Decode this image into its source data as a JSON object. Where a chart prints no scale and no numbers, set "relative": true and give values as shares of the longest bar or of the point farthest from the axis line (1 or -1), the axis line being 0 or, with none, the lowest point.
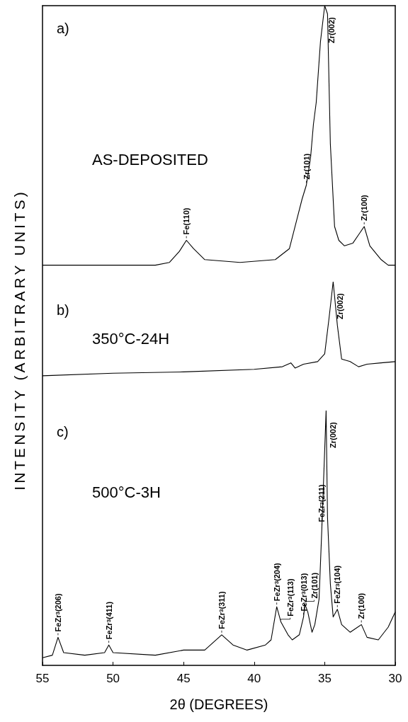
{
  "chart_data": [
    {
      "type": "line",
      "title": "a)",
      "subtitle": "AS-DEPOSITED",
      "relative": true,
      "xlim": [
        55,
        30
      ],
      "tick_labels": false,
      "x": [
        55,
        50,
        47,
        46,
        45.3,
        44.8,
        44.3,
        43.5,
        41,
        38.5,
        37.5,
        37,
        36.6,
        36.3,
        36,
        35.8,
        35.6,
        35.3,
        35,
        34.8,
        34.6,
        34.3,
        34,
        33.6,
        33,
        32.2,
        31.8,
        31,
        30.5,
        30
      ],
      "series": [
        {
          "color": "#000000",
          "values": [
            0.06,
            0.06,
            0.06,
            0.07,
            0.11,
            0.15,
            0.12,
            0.08,
            0.07,
            0.08,
            0.12,
            0.22,
            0.3,
            0.35,
            0.45,
            0.57,
            0.65,
            0.87,
            1,
            0.97,
            0.5,
            0.2,
            0.15,
            0.13,
            0.14,
            0.2,
            0.13,
            0.08,
            0.06,
            0.06
          ]
        }
      ],
      "annotations": [
        {
          "text": "Fe(110)",
          "x": 44.8,
          "y": 0.15
        },
        {
          "text": "Zr(101)",
          "x": 36.3,
          "y": 0.35
        },
        {
          "text": "Zr(002)",
          "x": 35,
          "y": 1
        },
        {
          "text": "Zr(100)",
          "x": 32.2,
          "y": 0.2
        }
      ]
    },
    {
      "type": "line",
      "title": "b)",
      "subtitle": "350°C-24H",
      "ylabel": "INTENSITY (ARBITRARY UNITS)",
      "relative": true,
      "xlim": [
        55,
        30
      ],
      "tick_labels": false,
      "x": [
        55,
        50,
        45,
        40,
        38,
        37.4,
        37.1,
        36.5,
        35.5,
        35,
        34.7,
        34.4,
        34.1,
        33.8,
        33.2,
        32.6,
        32,
        31,
        30
      ],
      "series": [
        {
          "color": "#000000",
          "values": [
            0.27,
            0.29,
            0.3,
            0.32,
            0.34,
            0.37,
            0.33,
            0.36,
            0.38,
            0.44,
            0.71,
            1,
            0.66,
            0.4,
            0.38,
            0.34,
            0.36,
            0.37,
            0.38
          ]
        }
      ],
      "annotations": [
        {
          "text": "Zr(002)",
          "x": 34.4,
          "y": 1
        }
      ]
    },
    {
      "type": "line",
      "title": "c)",
      "subtitle": "500°C-3H",
      "xlabel": "2θ (DEGREES)",
      "relative": true,
      "xlim": [
        55,
        30
      ],
      "xticks": [
        55,
        50,
        45,
        40,
        35,
        30
      ],
      "tick_labels": "x",
      "x": [
        55,
        54.3,
        53.9,
        53.5,
        52,
        50.6,
        50.3,
        50,
        47,
        45,
        43.5,
        42.3,
        41.5,
        40.5,
        39.2,
        38.8,
        38.4,
        38.1,
        37.6,
        37.3,
        36.8,
        36.5,
        36.4,
        36.2,
        35.9,
        35.7,
        35.4,
        35.2,
        34.9,
        34.8,
        34.6,
        34.4,
        34.1,
        33.8,
        33.2,
        32.4,
        32,
        31.2,
        30.5,
        30
      ],
      "series": [
        {
          "color": "#000000",
          "values": [
            0.03,
            0.04,
            0.11,
            0.05,
            0.04,
            0.05,
            0.08,
            0.05,
            0.04,
            0.06,
            0.06,
            0.12,
            0.08,
            0.06,
            0.08,
            0.1,
            0.23,
            0.17,
            0.12,
            0.1,
            0.12,
            0.19,
            0.24,
            0.21,
            0.13,
            0.16,
            0.26,
            0.54,
            1,
            0.58,
            0.32,
            0.19,
            0.22,
            0.16,
            0.13,
            0.16,
            0.11,
            0.1,
            0.15,
            0.21
          ]
        }
      ],
      "annotations": [
        {
          "text": "FeZr$_{3}$(206)",
          "x": 53.9,
          "y": 0.11
        },
        {
          "text": "FeZr$_{3}$(411)",
          "x": 50.3,
          "y": 0.08
        },
        {
          "text": "FeZr$_{3}$(311)",
          "x": 42.3,
          "y": 0.12
        },
        {
          "text": "FeZr$_{3}$(204)",
          "x": 38.4,
          "y": 0.23
        },
        {
          "text": "FeZr$_{3}$(113)",
          "x": 38.1,
          "y": 0.17
        },
        {
          "text": "FeZr$_{3}$(013)",
          "x": 36.5,
          "y": 0.19
        },
        {
          "text": "Zr(101)",
          "x": 36.4,
          "y": 0.24
        },
        {
          "text": "FeZr$_{3}$(211)",
          "x": 35.2,
          "y": 0.54
        },
        {
          "text": "Zr(002)",
          "x": 34.9,
          "y": 1
        },
        {
          "text": "FeZr$_{3}$(104)",
          "x": 34.1,
          "y": 0.22
        },
        {
          "text": "Zr(100)",
          "x": 32.4,
          "y": 0.16
        }
      ]
    }
  ]
}
